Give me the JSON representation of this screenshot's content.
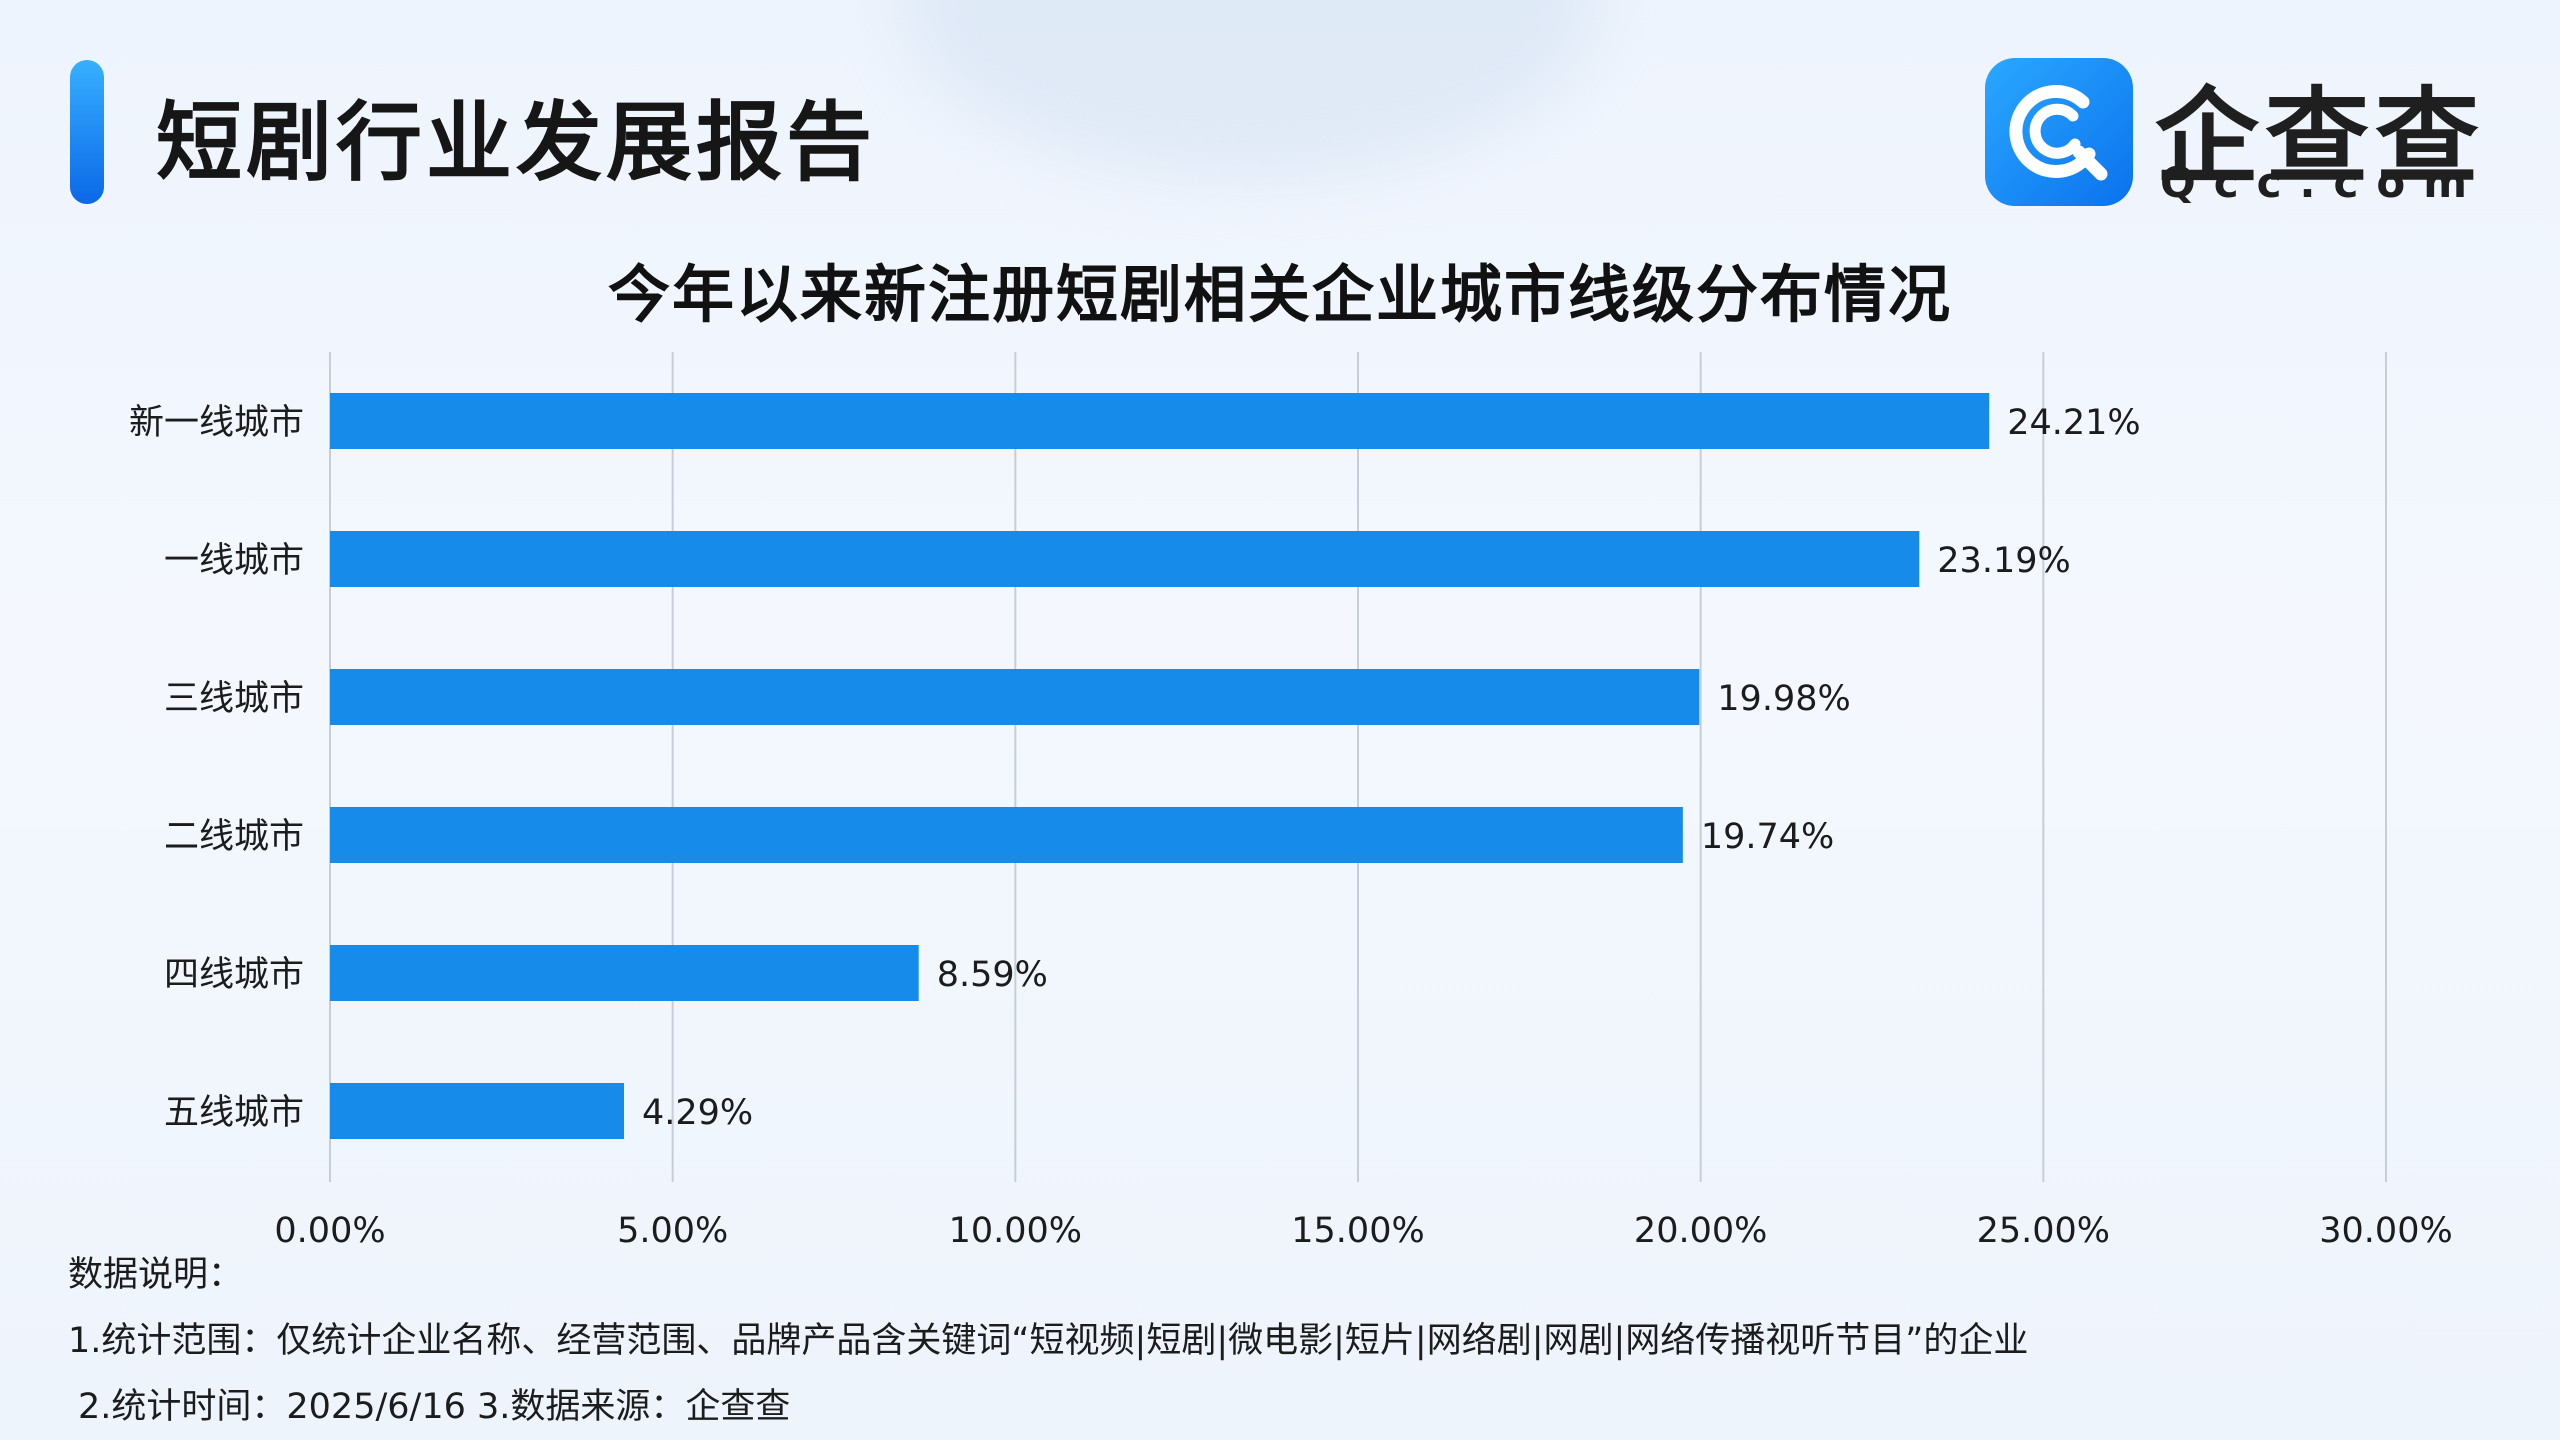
{
  "header": {
    "report_title": "短剧行业发展报告",
    "logo_cn": "企查查",
    "logo_en": "Qcc.com",
    "logo_icon": "qcc-logo-icon"
  },
  "colors": {
    "bar": "#168bea",
    "accent": "#1677f0",
    "grid": "#c7ced8"
  },
  "chart_data": {
    "type": "bar",
    "orientation": "horizontal",
    "title": "今年以来新注册短剧相关企业城市线级分布情况",
    "categories": [
      "新一线城市",
      "一线城市",
      "三线城市",
      "二线城市",
      "四线城市",
      "五线城市"
    ],
    "values": [
      24.21,
      23.19,
      19.98,
      19.74,
      8.59,
      4.29
    ],
    "value_labels": [
      "24.21%",
      "23.19%",
      "19.98%",
      "19.74%",
      "8.59%",
      "4.29%"
    ],
    "xlim": [
      0,
      30
    ],
    "xticks": [
      0,
      5,
      10,
      15,
      20,
      25,
      30
    ],
    "xtick_labels": [
      "0.00%",
      "5.00%",
      "10.00%",
      "15.00%",
      "20.00%",
      "25.00%",
      "30.00%"
    ],
    "xlabel": "",
    "ylabel": "",
    "grid": "vertical",
    "legend": "none"
  },
  "footnotes": [
    "数据说明：",
    "1.统计范围：仅统计企业名称、经营范围、品牌产品含关键词“短视频|短剧|微电影|短片|网络剧|网剧|网络传播视听节目”的企业",
    "2.统计时间：2025/6/16 3.数据来源：企查查"
  ]
}
